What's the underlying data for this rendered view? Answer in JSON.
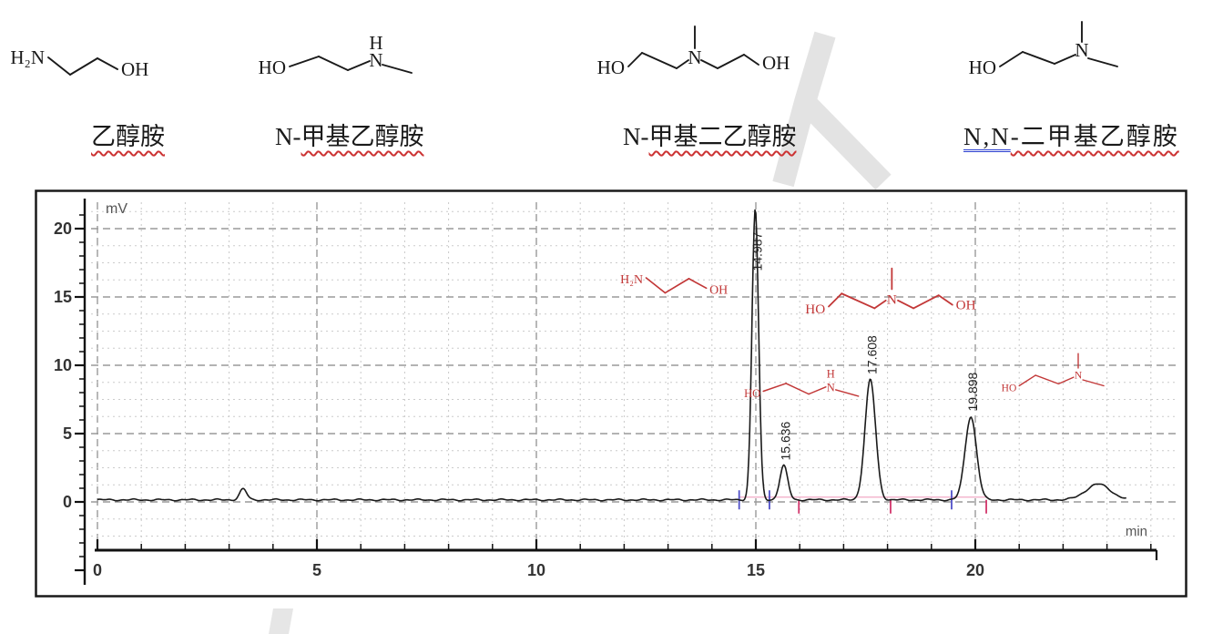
{
  "page": {
    "background": "#ffffff",
    "watermark_color": "#e3e3e3"
  },
  "top_panel": {
    "compounds": [
      {
        "struct": "ethanolamine",
        "prefix": "",
        "cjk": "乙醇胺"
      },
      {
        "struct": "mea",
        "prefix": "N-",
        "cjk": "甲基乙醇胺"
      },
      {
        "struct": "mdea",
        "prefix": "N-",
        "cjk": "甲基二乙醇胺"
      },
      {
        "struct": "dmea",
        "prefix": "N,N",
        "cjk": "-二甲基乙醇胺"
      }
    ]
  },
  "structure_texts": {
    "ethanolamine": [
      "H₂N",
      "OH"
    ],
    "mea": [
      "HO",
      "N",
      "H"
    ],
    "mdea": [
      "HO",
      "N",
      "OH"
    ],
    "dmea": [
      "HO",
      "N"
    ]
  },
  "chart_data": {
    "type": "line",
    "title": "",
    "ylabel": "mV",
    "xlabel": "min",
    "xlim": [
      0,
      24.6
    ],
    "ylim": [
      -5.9,
      21.9
    ],
    "x_major_ticks": [
      0,
      5,
      10,
      15,
      20
    ],
    "y_major_ticks": [
      0,
      5,
      10,
      15,
      20
    ],
    "x_minor_step": 1,
    "y_minor_step": 1.25,
    "grid": "dashed",
    "trace_color": "#1a1a1a",
    "baseline_mV": 0.15,
    "trace_end_min": 23.45,
    "peaks": [
      {
        "rt_min": 3.32,
        "height_mV": 0.8,
        "sigma_min": 0.08,
        "label": "",
        "compound": ""
      },
      {
        "rt_min": 14.987,
        "height_mV": 21.3,
        "sigma_min": 0.075,
        "label": "14.987",
        "compound": "乙醇胺"
      },
      {
        "rt_min": 15.636,
        "height_mV": 2.5,
        "sigma_min": 0.09,
        "label": "15.636",
        "compound": "N-甲基乙醇胺"
      },
      {
        "rt_min": 17.608,
        "height_mV": 8.8,
        "sigma_min": 0.12,
        "label": "17.608",
        "compound": "N-甲基二乙醇胺"
      },
      {
        "rt_min": 19.898,
        "height_mV": 6.1,
        "sigma_min": 0.13,
        "label": "19.898",
        "compound": "N,N-二甲基乙醇胺"
      },
      {
        "rt_min": 22.8,
        "height_mV": 1.15,
        "sigma_min": 0.28,
        "label": "",
        "compound": ""
      }
    ],
    "integration": {
      "baseline_color": "#f2a9c4",
      "baseline_from_min": 14.62,
      "baseline_to_min": 20.28,
      "baseline_level_mV": 0.35,
      "peak_start_marker_color": "#5050c8",
      "peak_start_markers_min": [
        14.62,
        15.31,
        19.46
      ],
      "peak_end_marker_color": "#d2356b",
      "peak_end_markers_min": [
        15.98,
        18.07,
        20.25
      ]
    },
    "annotation_color": "#c23737",
    "annotations": [
      {
        "struct": "ethanolamine",
        "compound": "乙醇胺",
        "rt_min": 12.5,
        "mV": 16.4,
        "scale": 0.87
      },
      {
        "struct": "mea",
        "compound": "N-甲基乙醇胺",
        "rt_min": 15.17,
        "mV": 8.1,
        "scale": 0.78
      },
      {
        "struct": "mdea",
        "compound": "N-甲基二乙醇胺",
        "rt_min": 16.66,
        "mV": 14.3,
        "scale": 0.95
      },
      {
        "struct": "dmea",
        "compound": "N,N-二甲基乙醇胺",
        "rt_min": 21.0,
        "mV": 8.5,
        "scale": 0.72
      }
    ]
  }
}
